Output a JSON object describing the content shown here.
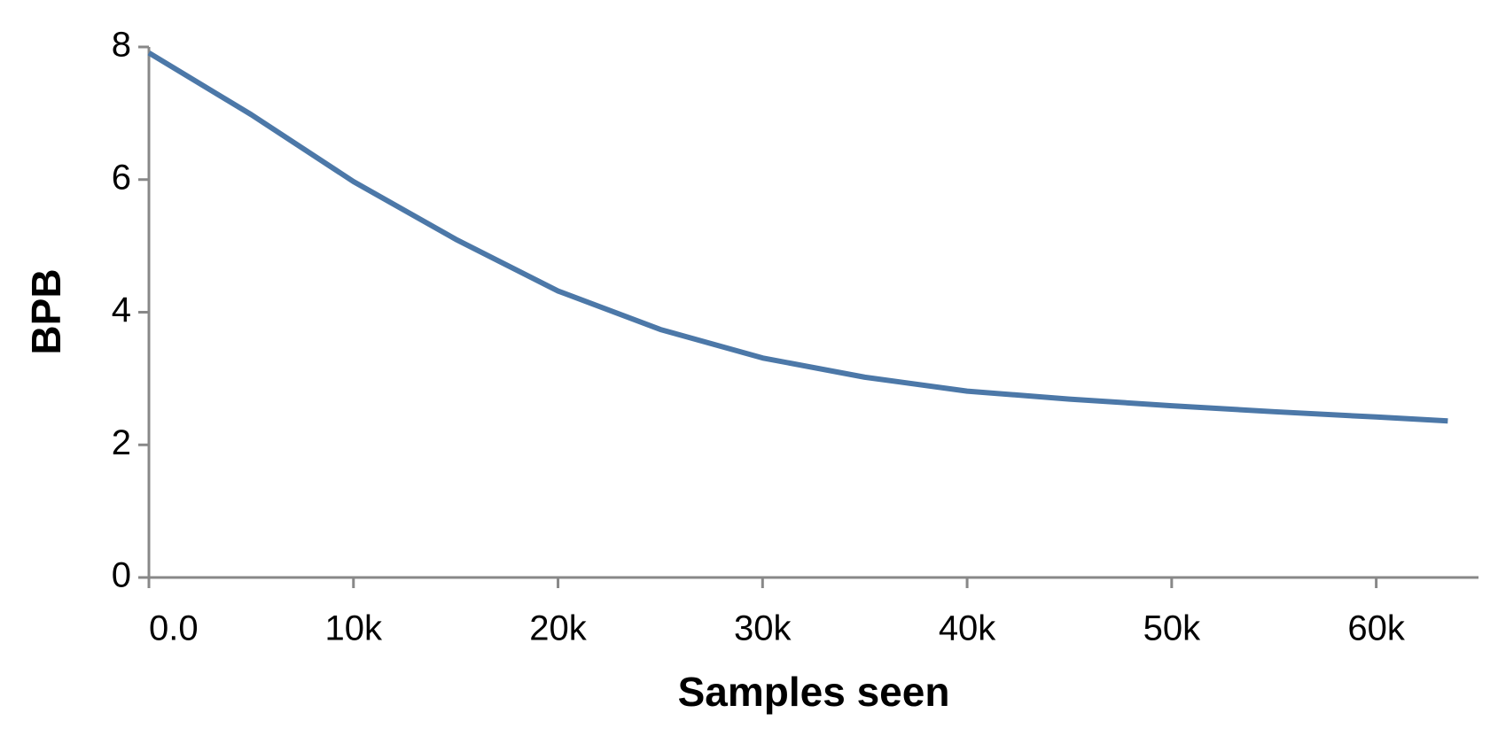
{
  "chart_data": {
    "type": "line",
    "x_label": "Samples seen",
    "y_label": "BPB",
    "x": [
      0,
      5000,
      10000,
      15000,
      20000,
      25000,
      30000,
      35000,
      40000,
      45000,
      50000,
      55000,
      60000,
      63500
    ],
    "series": [
      {
        "name": "BPB",
        "color": "#4c78a8",
        "values": [
          7.91,
          6.98,
          5.97,
          5.1,
          4.32,
          3.74,
          3.31,
          3.02,
          2.81,
          2.69,
          2.59,
          2.5,
          2.42,
          2.36
        ]
      }
    ],
    "xlim": [
      0,
      65000
    ],
    "xticks": [
      {
        "value": 0,
        "label": "0.0"
      },
      {
        "value": 10000,
        "label": "10k"
      },
      {
        "value": 20000,
        "label": "20k"
      },
      {
        "value": 30000,
        "label": "30k"
      },
      {
        "value": 40000,
        "label": "40k"
      },
      {
        "value": 50000,
        "label": "50k"
      },
      {
        "value": 60000,
        "label": "60k"
      }
    ],
    "ylim": [
      0,
      8
    ],
    "yticks": [
      0,
      2,
      4,
      6,
      8
    ],
    "grid": false
  }
}
